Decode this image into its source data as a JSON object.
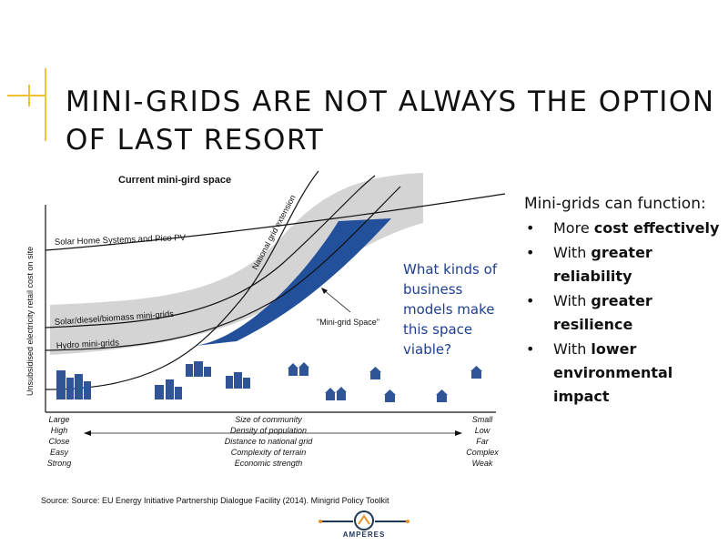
{
  "title": "MINI-GRIDS ARE NOT ALWAYS THE OPTION OF LAST RESORT",
  "colors": {
    "accent": "#f2c233",
    "band": "#d4d4d4",
    "space": "#23509b",
    "text_blue": "#1d3f8f",
    "house": "#2f5597",
    "logo_navy": "#1d3557",
    "logo_orange": "#e8902a"
  },
  "diagram": {
    "heading": "Current mini-gird space",
    "y_axis_label": "Unsubsidised electricity retail cost on site",
    "curve_labels": {
      "shs": "Solar Home Systems and Pico PV",
      "national": "National grid extension",
      "solar_diesel": "Solar/diesel/biomass mini-grids",
      "hydro": "Hydro mini-grids"
    },
    "space_label": "\"Mini-grid Space\"",
    "left_scale": [
      "Large",
      "High",
      "Close",
      "Easy",
      "Strong"
    ],
    "center_scale": [
      "Size of community",
      "Density of population",
      "Distance to national grid",
      "Complexity of terrain",
      "Economic strength"
    ],
    "right_scale": [
      "Small",
      "Low",
      "Far",
      "Complex",
      "Weak"
    ],
    "icons": [
      "city-buildings-icon",
      "houses-icon"
    ]
  },
  "question": "What kinds of business models make this space viable?",
  "bullets": {
    "intro": "Mini-grids can function:",
    "items": [
      {
        "pre": "More ",
        "bold": "cost effectively"
      },
      {
        "pre": "With ",
        "bold": "greater reliability"
      },
      {
        "pre": "With ",
        "bold": "greater resilience"
      },
      {
        "pre": "With ",
        "bold": "lower environmental impact"
      }
    ]
  },
  "source": "Source: Source: EU Energy Initiative Partnership Dialogue Facility (2014). Minigrid Policy Toolkit",
  "logo": {
    "text": "AMPERES",
    "icon": "amperes-logo-icon"
  }
}
